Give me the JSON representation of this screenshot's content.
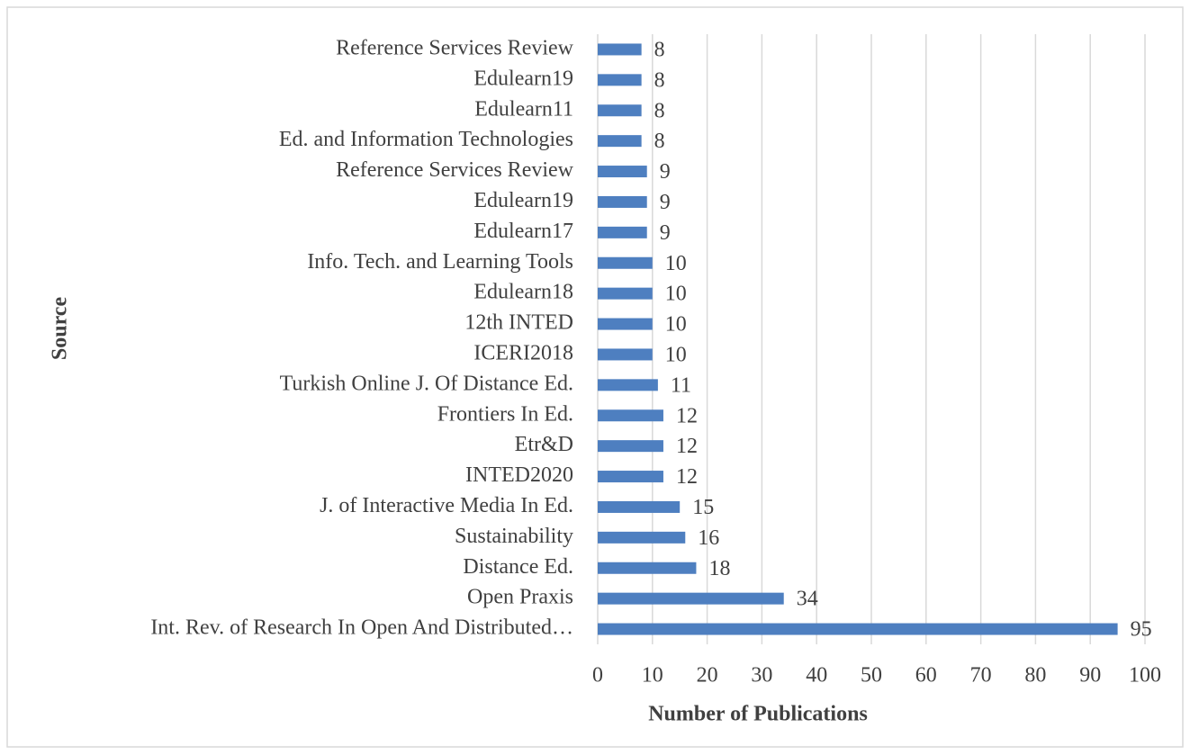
{
  "chart_data": {
    "type": "bar",
    "orientation": "horizontal",
    "categories": [
      "Reference Services Review",
      "Edulearn19",
      "Edulearn11",
      "Ed. and Information Technologies",
      "Reference Services Review",
      "Edulearn19",
      "Edulearn17",
      "Info. Tech. and Learning Tools",
      "Edulearn18",
      "12th INTED",
      "ICERI2018",
      "Turkish Online J. Of Distance Ed.",
      "Frontiers In Ed.",
      "Etr&D",
      "INTED2020",
      "J. of Interactive Media In Ed.",
      "Sustainability",
      "Distance Ed.",
      "Open Praxis",
      "Int. Rev. of Research In Open And Distributed…"
    ],
    "values": [
      8,
      8,
      8,
      8,
      9,
      9,
      9,
      10,
      10,
      10,
      10,
      11,
      12,
      12,
      12,
      15,
      16,
      18,
      34,
      95
    ],
    "color": "#4e7fc0",
    "xlabel": "Number of Publications",
    "ylabel": "Source",
    "xlim": [
      0,
      100
    ],
    "xticks": [
      0,
      10,
      20,
      30,
      40,
      50,
      60,
      70,
      80,
      90,
      100
    ],
    "grid": true
  }
}
